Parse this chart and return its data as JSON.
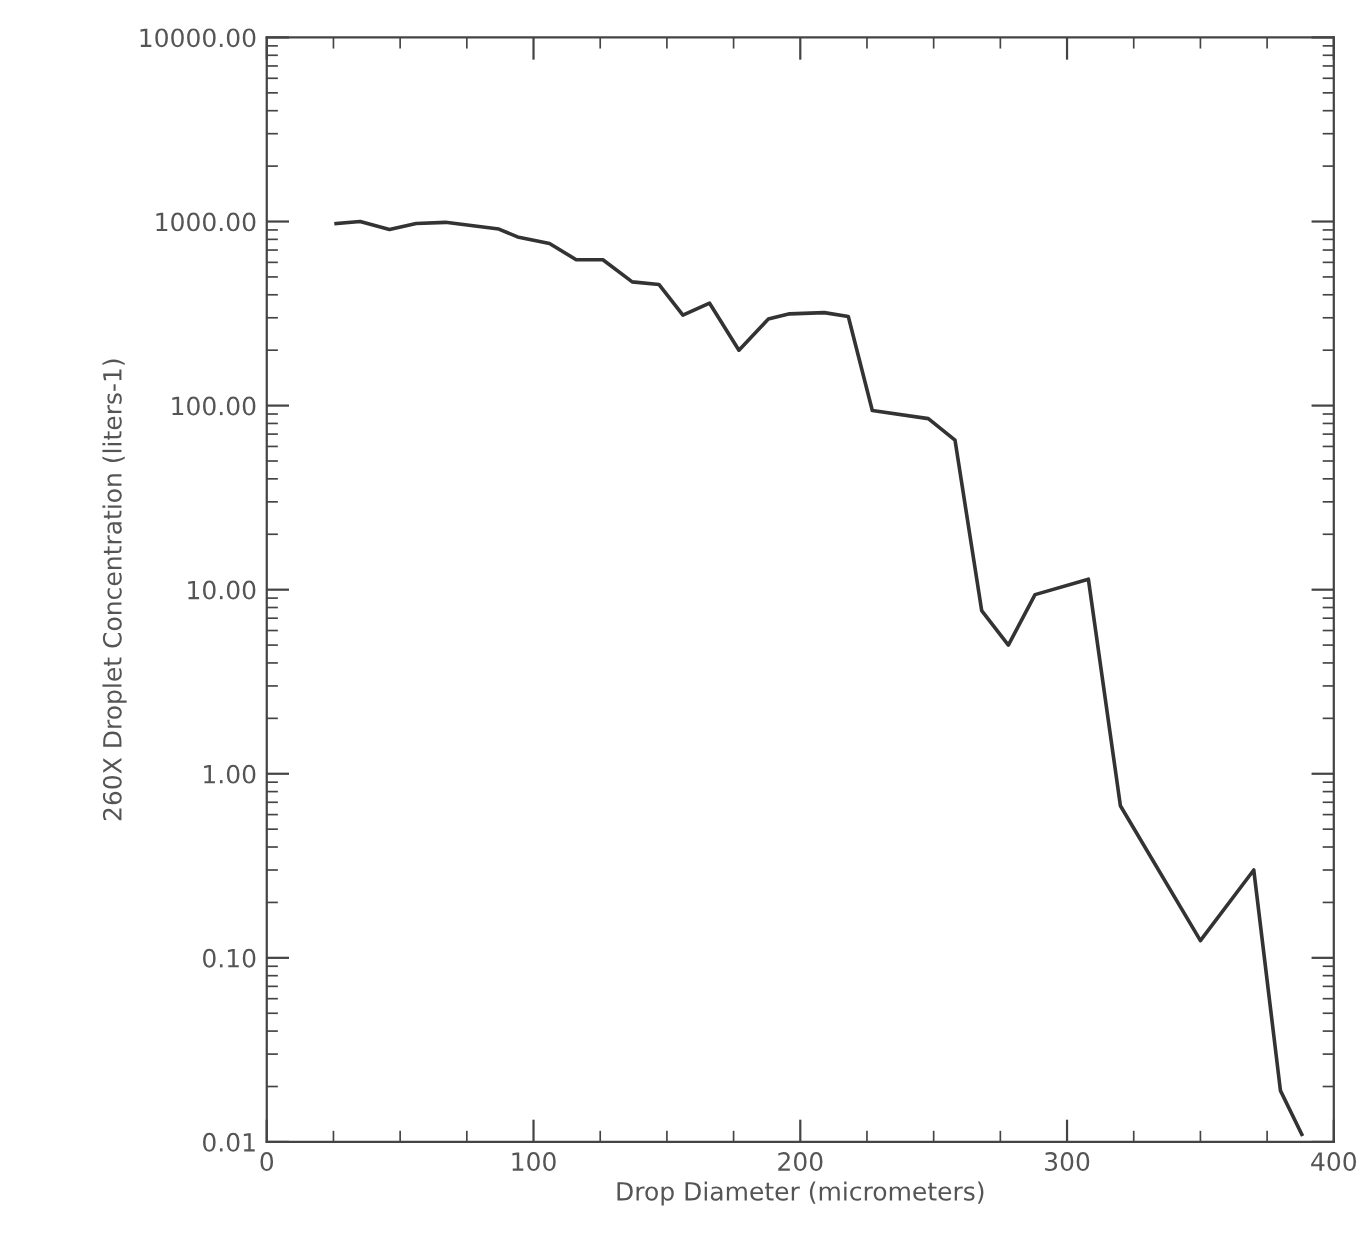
{
  "chart_data": {
    "type": "line",
    "xlabel": "Drop Diameter (micrometers)",
    "ylabel": "260X Droplet Concentration (liters-1)",
    "log": "y",
    "xlim": [
      0,
      400
    ],
    "xticks": [
      0,
      100,
      200,
      300,
      400
    ],
    "ylim": [
      0.01,
      10000
    ],
    "yticks": [
      {
        "value": 0.01,
        "label": "0.01"
      },
      {
        "value": 0.1,
        "label": "0.10"
      },
      {
        "value": 1,
        "label": "1.00"
      },
      {
        "value": 10,
        "label": "10.00"
      },
      {
        "value": 100,
        "label": "100.00"
      },
      {
        "value": 1000,
        "label": "1000.00"
      },
      {
        "value": 10000,
        "label": "10000.00"
      }
    ],
    "grid": false,
    "marker": "none",
    "line_style": "solid",
    "series": [
      {
        "color": "#333333",
        "x": [
          26,
          35,
          46,
          56,
          67,
          87,
          94,
          106,
          116,
          126,
          137,
          147,
          156,
          166,
          177,
          188,
          196,
          209,
          218,
          227,
          248,
          258,
          268,
          278,
          288,
          308,
          320,
          350,
          370,
          380,
          388
        ],
        "values": [
          975,
          1000,
          905,
          975,
          990,
          910,
          825,
          760,
          620,
          620,
          470,
          455,
          310,
          360,
          200,
          295,
          315,
          320,
          305,
          94,
          85,
          65,
          7.7,
          5.0,
          9.4,
          11.4,
          0.67,
          0.124,
          0.3,
          0.019,
          0.011
        ]
      }
    ]
  }
}
